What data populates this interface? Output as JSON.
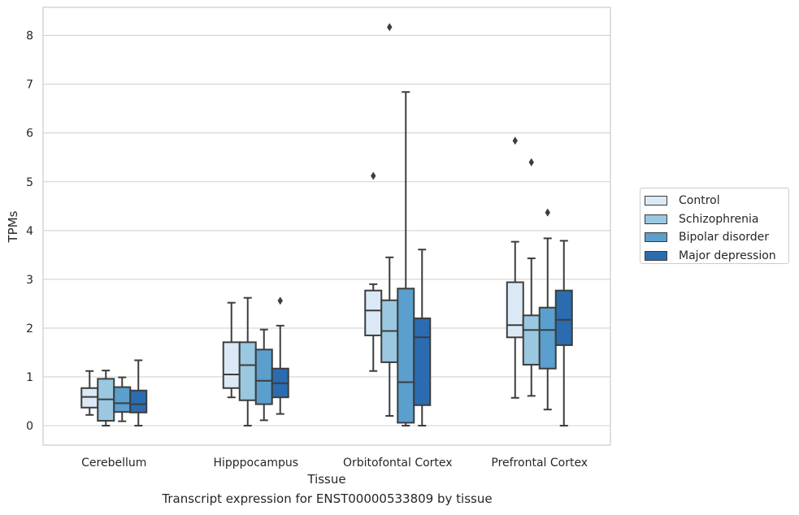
{
  "caption": "Transcript expression for ENST00000533809 by tissue",
  "chart_data": {
    "type": "box",
    "xlabel": "Tissue",
    "ylabel": "TPMs",
    "ylim": [
      -0.4,
      8.6
    ],
    "yticks": [
      0,
      1,
      2,
      3,
      4,
      5,
      6,
      7,
      8
    ],
    "grid": true,
    "legend_position": "right",
    "categories": [
      "Cerebellum",
      "Hipppocampus",
      "Orbitofontal Cortex",
      "Prefrontal Cortex"
    ],
    "series": [
      {
        "name": "Control",
        "color": "#dbe9f6",
        "boxes": [
          {
            "whisker_low": 0.22,
            "q1": 0.37,
            "median": 0.59,
            "q3": 0.77,
            "whisker_high": 1.12,
            "outliers": []
          },
          {
            "whisker_low": 0.58,
            "q1": 0.77,
            "median": 1.05,
            "q3": 1.71,
            "whisker_high": 2.52,
            "outliers": []
          },
          {
            "whisker_low": 1.12,
            "q1": 1.85,
            "median": 2.36,
            "q3": 2.77,
            "whisker_high": 2.9,
            "outliers": [
              5.12
            ]
          },
          {
            "whisker_low": 0.57,
            "q1": 1.81,
            "median": 2.06,
            "q3": 2.94,
            "whisker_high": 3.77,
            "outliers": [
              5.84
            ]
          }
        ]
      },
      {
        "name": "Schizophrenia",
        "color": "#9ac8e0",
        "boxes": [
          {
            "whisker_low": 0.0,
            "q1": 0.1,
            "median": 0.54,
            "q3": 0.96,
            "whisker_high": 1.13,
            "outliers": []
          },
          {
            "whisker_low": 0.0,
            "q1": 0.52,
            "median": 1.24,
            "q3": 1.71,
            "whisker_high": 2.62,
            "outliers": []
          },
          {
            "whisker_low": 0.2,
            "q1": 1.3,
            "median": 1.94,
            "q3": 2.57,
            "whisker_high": 3.45,
            "outliers": [
              8.17
            ]
          },
          {
            "whisker_low": 0.61,
            "q1": 1.25,
            "median": 1.96,
            "q3": 2.26,
            "whisker_high": 3.43,
            "outliers": [
              5.4
            ]
          }
        ]
      },
      {
        "name": "Bipolar disorder",
        "color": "#5a9fcd",
        "boxes": [
          {
            "whisker_low": 0.09,
            "q1": 0.28,
            "median": 0.46,
            "q3": 0.79,
            "whisker_high": 0.99,
            "outliers": []
          },
          {
            "whisker_low": 0.11,
            "q1": 0.44,
            "median": 0.92,
            "q3": 1.56,
            "whisker_high": 1.97,
            "outliers": []
          },
          {
            "whisker_low": 0.0,
            "q1": 0.06,
            "median": 0.89,
            "q3": 2.81,
            "whisker_high": 6.84,
            "outliers": []
          },
          {
            "whisker_low": 0.33,
            "q1": 1.17,
            "median": 1.96,
            "q3": 2.42,
            "whisker_high": 3.84,
            "outliers": [
              4.37
            ]
          }
        ]
      },
      {
        "name": "Major depression",
        "color": "#2b6cb0",
        "boxes": [
          {
            "whisker_low": 0.0,
            "q1": 0.27,
            "median": 0.44,
            "q3": 0.72,
            "whisker_high": 1.34,
            "outliers": []
          },
          {
            "whisker_low": 0.24,
            "q1": 0.58,
            "median": 0.87,
            "q3": 1.17,
            "whisker_high": 2.05,
            "outliers": [
              2.56
            ]
          },
          {
            "whisker_low": 0.0,
            "q1": 0.42,
            "median": 1.81,
            "q3": 2.2,
            "whisker_high": 3.61,
            "outliers": []
          },
          {
            "whisker_low": 0.0,
            "q1": 1.65,
            "median": 2.17,
            "q3": 2.77,
            "whisker_high": 3.79,
            "outliers": []
          }
        ]
      }
    ]
  }
}
